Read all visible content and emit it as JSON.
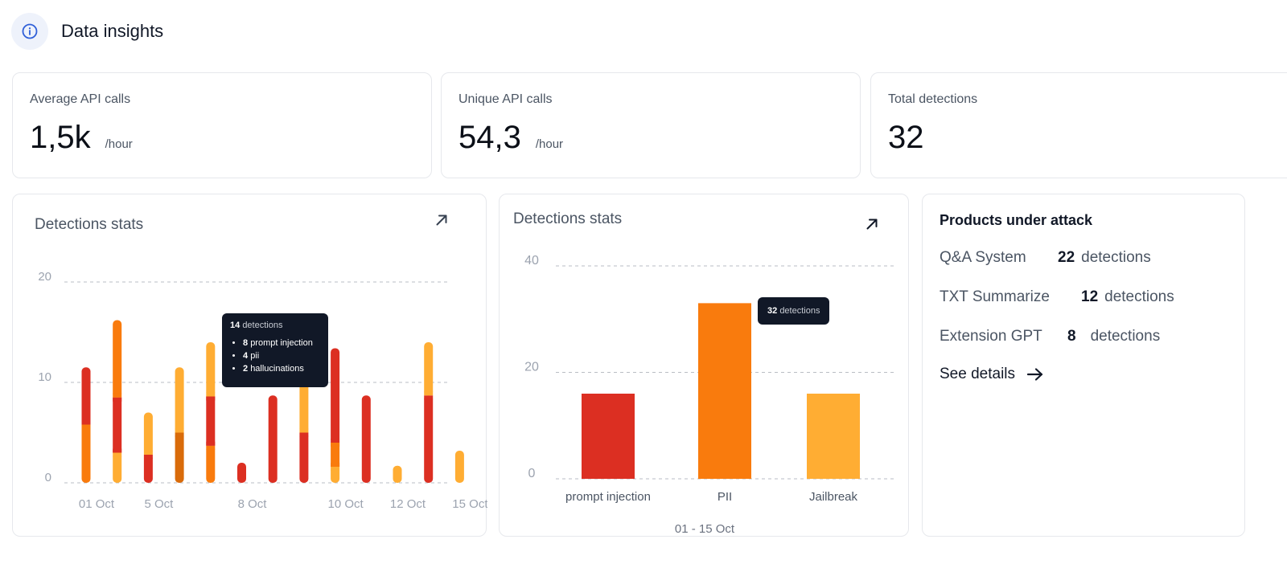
{
  "header": {
    "title": "Data insights",
    "icon": "info-icon"
  },
  "stats": [
    {
      "label": "Average API calls",
      "value": "1,5k",
      "unit": "/hour"
    },
    {
      "label": "Unique API calls",
      "value": "54,3",
      "unit": "/hour"
    },
    {
      "label": "Total detections",
      "value": "32",
      "unit": ""
    }
  ],
  "colors": {
    "red": "#dc2f22",
    "orange": "#f97b0d",
    "amber": "#ffad33",
    "dark_orange": "#d96b0a",
    "tooltip_bg": "#111827",
    "accent_blue": "#2f5fd8"
  },
  "chart1": {
    "title": "Detections stats",
    "tooltip": {
      "count": "14",
      "suffix": "detections",
      "items": [
        {
          "count": "8",
          "label": "prompt injection"
        },
        {
          "count": "4",
          "label": "pii"
        },
        {
          "count": "2",
          "label": "hallucinations"
        }
      ]
    },
    "chart_data": {
      "type": "bar",
      "stacked": true,
      "ylim": [
        0,
        20
      ],
      "yticks": [
        "0",
        "10",
        "20"
      ],
      "x_tick_labels": [
        "01 Oct",
        "5 Oct",
        "8 Oct",
        "10 Oct",
        "12 Oct",
        "15 Oct"
      ],
      "grid": "dashed",
      "bars": [
        {
          "segments": [
            {
              "value": 5.8,
              "color": "orange"
            },
            {
              "value": 5.7,
              "color": "red"
            }
          ]
        },
        {
          "segments": [
            {
              "value": 3.0,
              "color": "amber"
            },
            {
              "value": 5.5,
              "color": "red"
            },
            {
              "value": 7.7,
              "color": "orange"
            }
          ]
        },
        {
          "segments": [
            {
              "value": 2.8,
              "color": "red"
            },
            {
              "value": 4.2,
              "color": "amber"
            }
          ]
        },
        {
          "segments": [
            {
              "value": 5.0,
              "color": "dark_orange"
            },
            {
              "value": 6.5,
              "color": "amber"
            }
          ]
        },
        {
          "segments": [
            {
              "value": 3.7,
              "color": "orange"
            },
            {
              "value": 4.9,
              "color": "red"
            },
            {
              "value": 5.4,
              "color": "amber"
            }
          ]
        },
        {
          "segments": [
            {
              "value": 2.0,
              "color": "red"
            }
          ]
        },
        {
          "segments": [
            {
              "value": 8.7,
              "color": "red"
            }
          ]
        },
        {
          "segments": [
            {
              "value": 5.0,
              "color": "red"
            },
            {
              "value": 5.0,
              "color": "amber"
            }
          ]
        },
        {
          "segments": [
            {
              "value": 1.6,
              "color": "amber"
            },
            {
              "value": 2.4,
              "color": "orange"
            },
            {
              "value": 9.4,
              "color": "red"
            }
          ]
        },
        {
          "segments": [
            {
              "value": 8.7,
              "color": "red"
            }
          ]
        },
        {
          "segments": [
            {
              "value": 1.7,
              "color": "amber"
            }
          ]
        },
        {
          "segments": [
            {
              "value": 8.7,
              "color": "red"
            },
            {
              "value": 5.3,
              "color": "amber"
            }
          ]
        },
        {
          "segments": [
            {
              "value": 3.2,
              "color": "amber"
            }
          ]
        }
      ]
    }
  },
  "chart2": {
    "title": "Detections stats",
    "tooltip": {
      "count": "32",
      "suffix": "detections"
    },
    "chart_data": {
      "type": "bar",
      "categories": [
        "prompt injection",
        "PII",
        "Jailbreak"
      ],
      "values": [
        16,
        33,
        16
      ],
      "bar_colors": [
        "red",
        "orange",
        "amber"
      ],
      "ylim": [
        0,
        40
      ],
      "yticks": [
        "0",
        "20",
        "40"
      ],
      "xlabel": "01 - 15 Oct",
      "grid": "dashed"
    }
  },
  "products": {
    "title": "Products under attack",
    "items": [
      {
        "name": "Q&A System",
        "count": "22",
        "suffix": "detections"
      },
      {
        "name": "TXT Summarize",
        "count": "12",
        "suffix": "detections"
      },
      {
        "name": "Extension GPT",
        "count": "8",
        "suffix": "detections"
      }
    ],
    "see_details": "See details"
  }
}
